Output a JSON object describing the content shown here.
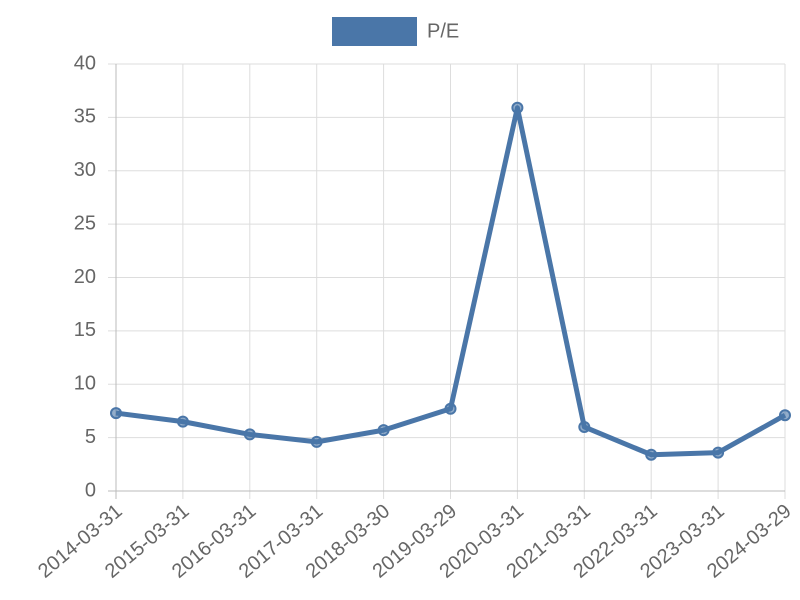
{
  "chart_data": {
    "type": "line",
    "categories": [
      "2014-03-31",
      "2015-03-31",
      "2016-03-31",
      "2017-03-31",
      "2018-03-30",
      "2019-03-29",
      "2020-03-31",
      "2021-03-31",
      "2022-03-31",
      "2023-03-31",
      "2024-03-29"
    ],
    "series": [
      {
        "name": "P/E",
        "color": "#4a76a8",
        "values": [
          7.3,
          6.5,
          5.3,
          4.6,
          5.7,
          7.7,
          35.9,
          6.0,
          3.4,
          3.6,
          7.1
        ]
      }
    ],
    "ylim": [
      0,
      40
    ],
    "yticks": [
      0,
      5,
      10,
      15,
      20,
      25,
      30,
      35,
      40
    ],
    "grid": true,
    "legend": "top"
  }
}
